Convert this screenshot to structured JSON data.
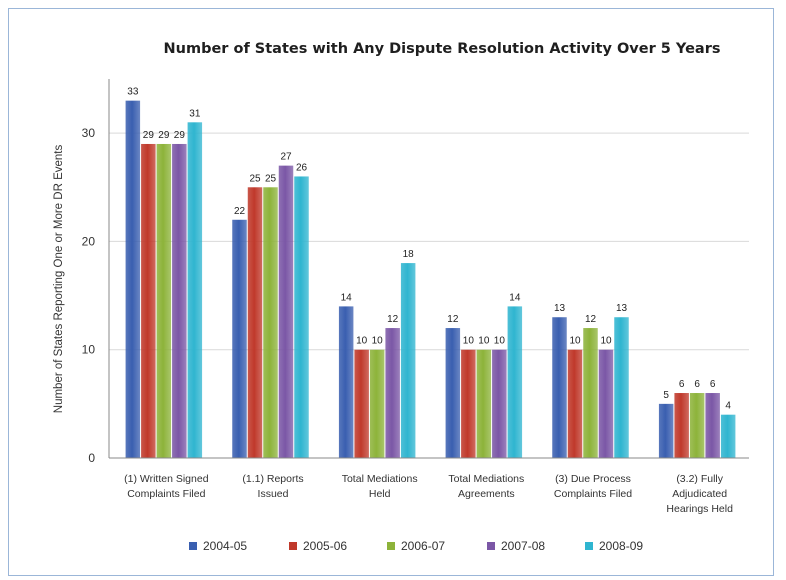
{
  "chart_data": {
    "type": "bar",
    "title": "Number of States with Any Dispute Resolution Activity Over 5 Years",
    "xlabel": "",
    "ylabel": "Number of States Reporting One or More DR Events",
    "ylim": [
      0,
      35
    ],
    "yticks": [
      0,
      10,
      20,
      30
    ],
    "grid": true,
    "legend_position": "bottom",
    "categories": [
      [
        "(1) Written Signed",
        "Complaints Filed"
      ],
      [
        "(1.1) Reports",
        "Issued"
      ],
      [
        "Total Mediations",
        "Held"
      ],
      [
        "Total Mediations",
        "Agreements"
      ],
      [
        "(3) Due Process",
        "Complaints Filed"
      ],
      [
        "(3.2) Fully",
        "Adjudicated",
        "Hearings Held"
      ]
    ],
    "series": [
      {
        "name": "2004-05",
        "color": "#3a5fb0",
        "values": [
          33,
          22,
          14,
          12,
          13,
          5
        ]
      },
      {
        "name": "2005-06",
        "color": "#c0392b",
        "values": [
          29,
          25,
          10,
          10,
          10,
          6
        ]
      },
      {
        "name": "2006-07",
        "color": "#8db33a",
        "values": [
          29,
          25,
          10,
          10,
          12,
          6
        ]
      },
      {
        "name": "2007-08",
        "color": "#7b57a6",
        "values": [
          29,
          27,
          12,
          10,
          10,
          6
        ]
      },
      {
        "name": "2008-09",
        "color": "#2fb5d0",
        "values": [
          31,
          26,
          18,
          14,
          13,
          4
        ]
      }
    ]
  }
}
